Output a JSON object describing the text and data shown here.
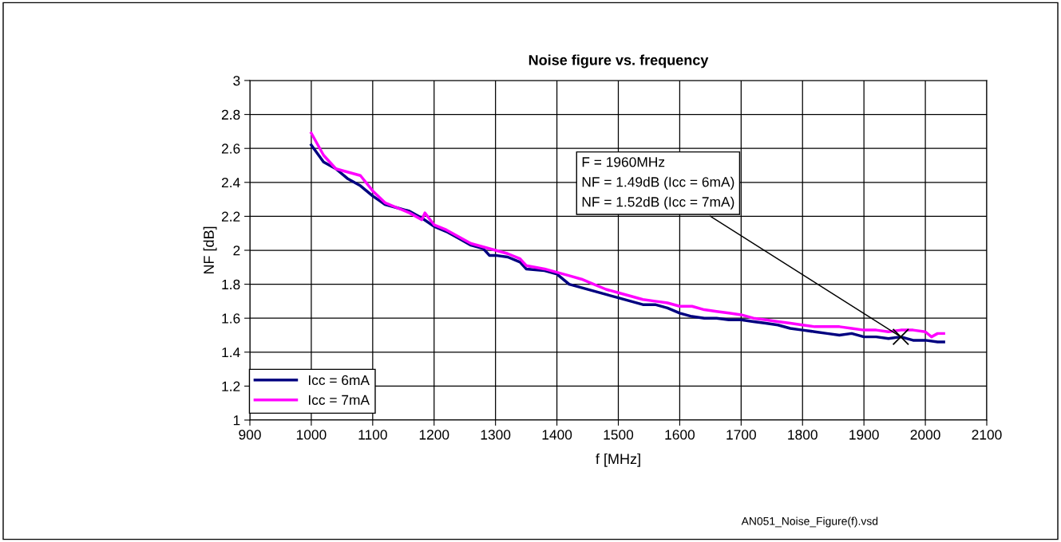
{
  "chart_data": {
    "type": "line",
    "title": "Noise figure vs. frequency",
    "xlabel": "f [MHz]",
    "ylabel": "NF [dB]",
    "xlim": [
      900,
      2100
    ],
    "xticks": [
      900,
      1000,
      1100,
      1200,
      1300,
      1400,
      1500,
      1600,
      1700,
      1800,
      1900,
      2000,
      2100
    ],
    "ylim": [
      1,
      3
    ],
    "yticks": [
      1,
      1.2,
      1.4,
      1.6,
      1.8,
      2,
      2.2,
      2.4,
      2.6,
      2.8,
      3
    ],
    "grid": true,
    "legend": "bottom left",
    "marker": "none",
    "line_style": "solid",
    "series": [
      {
        "name": "Icc = 6mA",
        "color": "#000080",
        "x": [
          1000,
          1020,
          1040,
          1060,
          1080,
          1100,
          1120,
          1140,
          1160,
          1180,
          1200,
          1220,
          1240,
          1260,
          1280,
          1290,
          1300,
          1320,
          1340,
          1350,
          1380,
          1400,
          1420,
          1440,
          1460,
          1480,
          1500,
          1520,
          1540,
          1560,
          1580,
          1600,
          1620,
          1640,
          1660,
          1680,
          1700,
          1720,
          1740,
          1760,
          1780,
          1800,
          1820,
          1840,
          1860,
          1880,
          1900,
          1920,
          1940,
          1960,
          1980,
          2000,
          2020,
          2030
        ],
        "values": [
          2.62,
          2.52,
          2.48,
          2.42,
          2.38,
          2.32,
          2.27,
          2.25,
          2.23,
          2.19,
          2.14,
          2.11,
          2.07,
          2.03,
          2.01,
          1.97,
          1.97,
          1.96,
          1.93,
          1.89,
          1.88,
          1.86,
          1.8,
          1.78,
          1.76,
          1.74,
          1.72,
          1.7,
          1.68,
          1.68,
          1.66,
          1.63,
          1.61,
          1.6,
          1.6,
          1.59,
          1.59,
          1.58,
          1.57,
          1.56,
          1.54,
          1.53,
          1.52,
          1.51,
          1.5,
          1.51,
          1.49,
          1.49,
          1.48,
          1.49,
          1.47,
          1.47,
          1.46,
          1.46
        ]
      },
      {
        "name": "Icc = 7mA",
        "color": "#ff00ff",
        "x": [
          1000,
          1020,
          1040,
          1060,
          1080,
          1100,
          1120,
          1140,
          1160,
          1180,
          1185,
          1200,
          1220,
          1240,
          1260,
          1280,
          1300,
          1320,
          1340,
          1350,
          1380,
          1400,
          1420,
          1440,
          1460,
          1480,
          1500,
          1520,
          1540,
          1560,
          1580,
          1600,
          1620,
          1640,
          1660,
          1680,
          1700,
          1720,
          1740,
          1760,
          1780,
          1800,
          1820,
          1840,
          1860,
          1880,
          1900,
          1920,
          1940,
          1960,
          1980,
          2000,
          2010,
          2020,
          2030
        ],
        "values": [
          2.69,
          2.56,
          2.48,
          2.46,
          2.44,
          2.35,
          2.28,
          2.25,
          2.22,
          2.18,
          2.22,
          2.15,
          2.12,
          2.08,
          2.04,
          2.02,
          2.0,
          1.98,
          1.95,
          1.91,
          1.89,
          1.87,
          1.85,
          1.83,
          1.8,
          1.77,
          1.75,
          1.73,
          1.71,
          1.7,
          1.69,
          1.67,
          1.67,
          1.65,
          1.64,
          1.63,
          1.62,
          1.6,
          1.59,
          1.58,
          1.57,
          1.56,
          1.55,
          1.55,
          1.55,
          1.54,
          1.53,
          1.53,
          1.52,
          1.53,
          1.53,
          1.52,
          1.49,
          1.51,
          1.51
        ]
      }
    ],
    "annotations": [
      {
        "text": "F = 1960MHz\nNF = 1.49dB (Icc = 6mA)\nNF = 1.52dB (Icc = 7mA)",
        "x": 1960,
        "y": 1.49
      },
      "AN051_Noise_Figure(f).vsd"
    ]
  }
}
